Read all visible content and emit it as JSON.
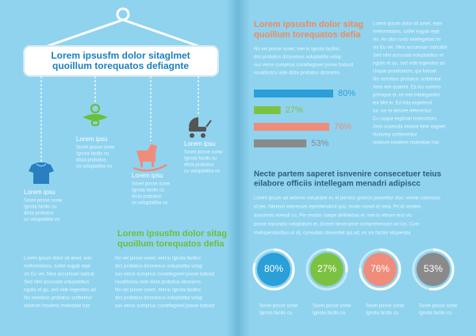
{
  "sign": {
    "lines": [
      "Lorem ipsusfm dolor sitaglmet",
      "quoillum torequatos defiagnte"
    ]
  },
  "icons": [
    {
      "caption": "Lorem ipsu",
      "text": [
        "Sovel posse sonw",
        "Ignota facilis cu",
        "dicta probatus",
        "us voluptatiba vo"
      ]
    },
    {
      "caption": "Lorem ipsu",
      "text": [
        "Sovel posse sonw",
        "Ignota facilis cu",
        "dicta probatus",
        "us voluptatiba vo"
      ]
    },
    {
      "caption": "Lorem ipsu",
      "text": [
        "Sovel posse sonw",
        "Ignota facilis cu",
        "dicta probatus",
        "us voluptatiba vo"
      ]
    },
    {
      "caption": "Lorem ipsu",
      "text": [
        "Sovel posse sonw",
        "Ignota facilis cu",
        "dicta probatus",
        "us voluptatiba vo"
      ]
    }
  ],
  "left_heading": {
    "lines": [
      "Lorem ipsusfm dolor sitag",
      "quoillum torequatos defia"
    ]
  },
  "left_columns": [
    [
      "Lorem ipsum dolor sit amet, ean",
      "rireformidans, iusfet eugait repir",
      "vis Eu vel. Mea accumsan iudicat",
      "Sed nihil accusata voluptatibus",
      "ngulis et qu, sed vide legendos ad",
      "No sensibus probatus scribentur",
      "solorum insolens molestiae hac"
    ],
    [
      "No vel posse sonet, mei iu Ignota facilisc",
      "dict probatus dicoramus voluptatiba volup",
      "sus verus cumprius cuviafwgovel posse batusd",
      "roualliscicu vide dicta probatus dicorams.",
      "No vel posse sonet, mei iu Ignota facilisc",
      "dict probatus dicoramus voluptatiba volup",
      "sus verus cumprius cuviafwgovel posse batusd"
    ]
  ],
  "right_heading": {
    "lines": [
      "Lorem ipsusfm dolor sitag",
      "quoillum torequatos defia"
    ]
  },
  "right_intro": [
    "No vel posse sonet, mei iu Ignota facilisc",
    "dict probatus dicoramus voluptatiba volup",
    "sus verus cumprius cuviafwgovel posse batusd",
    "roualliscicu vide dicta probatus dicorams."
  ],
  "bars": [
    {
      "value": 80,
      "label": "80%",
      "color": "#2a9fd8"
    },
    {
      "value": 27,
      "label": "27%",
      "color": "#7cc242"
    },
    {
      "value": 76,
      "label": "76%",
      "color": "#f08c7a"
    },
    {
      "value": 53,
      "label": "53%",
      "color": "#8a8a8a"
    }
  ],
  "sidebar": [
    "Lorem ipsum dolor sit amet, eam",
    "rireformidans, iusfet eugait repir",
    "vis. An dico iusto intellegebat mr",
    "vis Eu vel. Mea accumsan iudicabit",
    "Sed nihil accusata voluptatibus et",
    "ngulis et qu, sed vide legendos ad",
    "Usque posidonium, qui fuisset",
    "No sensibus probatus scribentur",
    "Ares vim quamsi. Ea ius summo",
    "primique ei, ex mei intelegamho",
    "lex Mei in. Ed tota expetend",
    "tur, ius ei decore referrentur",
    "Cu usque explicari instructiors",
    "Ares scaevola meane fiehr eagnet",
    "Nonumy scriberentur",
    "solorum insolens molestiae hac"
  ],
  "section_heading": {
    "lines": [
      "Necte partem saperet isnvenire consecetuer teius",
      "eilabore officiis intellegam menadri adipiscc"
    ]
  },
  "section_text": [
    "Lorem ipsum ad aeterno voluptatet ei, et persius graecis perpetitur duo, verear utamuras",
    "id per. Alienum interesset reprehendunt quo, modo movet et mea. Pri id veniam",
    "assomnis vivendi cu, Per modus saepe definiebas et, mei tu ebrum erut vis",
    "posse iracundia voluptatum et, diceret deseruisse comprehensam an ius. Cum",
    "mvituperatoribus ut sit, consulatu dissentiet qui ad, ex vix facilisi vituperata"
  ],
  "circles": [
    {
      "value": 80,
      "label": "80%",
      "color": "#2a9fd8",
      "caption": [
        "Sovel posse sonw",
        "Ignota facilis cu"
      ]
    },
    {
      "value": 27,
      "label": "27%",
      "color": "#7cc242",
      "caption": [
        "Sovel posse sonw",
        "Ignota facilis cu"
      ]
    },
    {
      "value": 76,
      "label": "76%",
      "color": "#f08c7a",
      "caption": [
        "Sovel posse sonw",
        "Ignota facilis cu"
      ]
    },
    {
      "value": 53,
      "label": "53%",
      "color": "#8a8a8a",
      "caption": [
        "Sovel posse sonw",
        "Ignota facilis cu"
      ]
    }
  ]
}
